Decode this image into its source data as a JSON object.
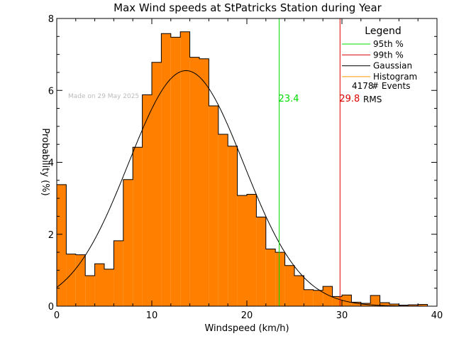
{
  "chart_data": {
    "type": "bar",
    "title": "Max Wind speeds at StPatricks Station during Year",
    "xlabel": "Windspeed (km/h)",
    "ylabel": "Probability  (%)",
    "xlim": [
      0,
      40
    ],
    "ylim": [
      0,
      8
    ],
    "x_ticks": [
      0,
      10,
      20,
      30,
      40
    ],
    "y_ticks": [
      0,
      2,
      4,
      6,
      8
    ],
    "bin_width": 1,
    "bin_starts": [
      0,
      1,
      2,
      3,
      4,
      5,
      6,
      7,
      8,
      9,
      10,
      11,
      12,
      13,
      14,
      15,
      16,
      17,
      18,
      19,
      20,
      21,
      22,
      23,
      24,
      25,
      26,
      27,
      28,
      29,
      30,
      31,
      32,
      33,
      34,
      35,
      36,
      37,
      38,
      39
    ],
    "values": [
      3.38,
      1.45,
      1.43,
      0.85,
      1.18,
      1.03,
      1.82,
      3.52,
      4.42,
      5.88,
      6.78,
      7.58,
      7.48,
      7.63,
      6.92,
      6.88,
      5.57,
      4.78,
      4.45,
      3.08,
      3.11,
      2.48,
      1.59,
      1.5,
      1.13,
      0.85,
      0.46,
      0.44,
      0.55,
      0.27,
      0.31,
      0.11,
      0.08,
      0.3,
      0.1,
      0.06,
      0.03,
      0.04,
      0.05,
      0.0
    ],
    "gaussian": {
      "mean": 13.6,
      "sigma": 6.05,
      "peak": 6.55
    },
    "percentile_95": {
      "value": 23.4,
      "label": "23.4",
      "color": "#00dd00"
    },
    "percentile_99": {
      "value": 29.8,
      "label": "29.8",
      "color": "#dd0000"
    },
    "bar_color": "#ff7f00",
    "legend": {
      "title": "Legend",
      "entries": [
        {
          "label": "95th %",
          "color": "#00dd00"
        },
        {
          "label": "99th %",
          "color": "#dd0000"
        },
        {
          "label": "Gaussian",
          "color": "#000000"
        },
        {
          "label": "Histogram",
          "color": "#ff9900"
        }
      ],
      "events_count": "4178",
      "events_label": "# Events",
      "rms_label": "RMS"
    },
    "watermark": "Made on 29 May 2025"
  }
}
